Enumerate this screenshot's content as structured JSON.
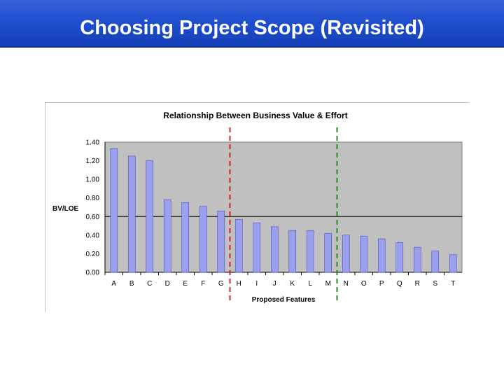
{
  "slide": {
    "title": "Choosing Project Scope (Revisited)"
  },
  "colors": {
    "header": "#1f4fcf",
    "bar": "#9aa0ee",
    "bar_edge": "#4d52b8",
    "plot_bg": "#c0c0c0",
    "cut_red": "#d42020",
    "cut_green": "#2a8a2a"
  },
  "chart_data": {
    "type": "bar",
    "title": "Relationship Between Business Value & Effort",
    "xlabel": "Proposed Features",
    "ylabel": "BV/LOE",
    "categories": [
      "A",
      "B",
      "C",
      "D",
      "E",
      "F",
      "G",
      "H",
      "I",
      "J",
      "K",
      "L",
      "M",
      "N",
      "O",
      "P",
      "Q",
      "R",
      "S",
      "T"
    ],
    "values": [
      1.33,
      1.25,
      1.2,
      0.78,
      0.75,
      0.71,
      0.66,
      0.57,
      0.53,
      0.49,
      0.45,
      0.45,
      0.42,
      0.4,
      0.39,
      0.36,
      0.32,
      0.27,
      0.23,
      0.19
    ],
    "ylim": [
      0,
      1.4
    ],
    "yticks": [
      "0.00",
      "0.20",
      "0.40",
      "0.60",
      "0.80",
      "1.00",
      "1.20",
      "1.40"
    ],
    "reference_line": 0.6,
    "cut_lines": [
      {
        "after": "G",
        "color": "red"
      },
      {
        "after": "M",
        "color": "green"
      }
    ],
    "grid": false
  }
}
